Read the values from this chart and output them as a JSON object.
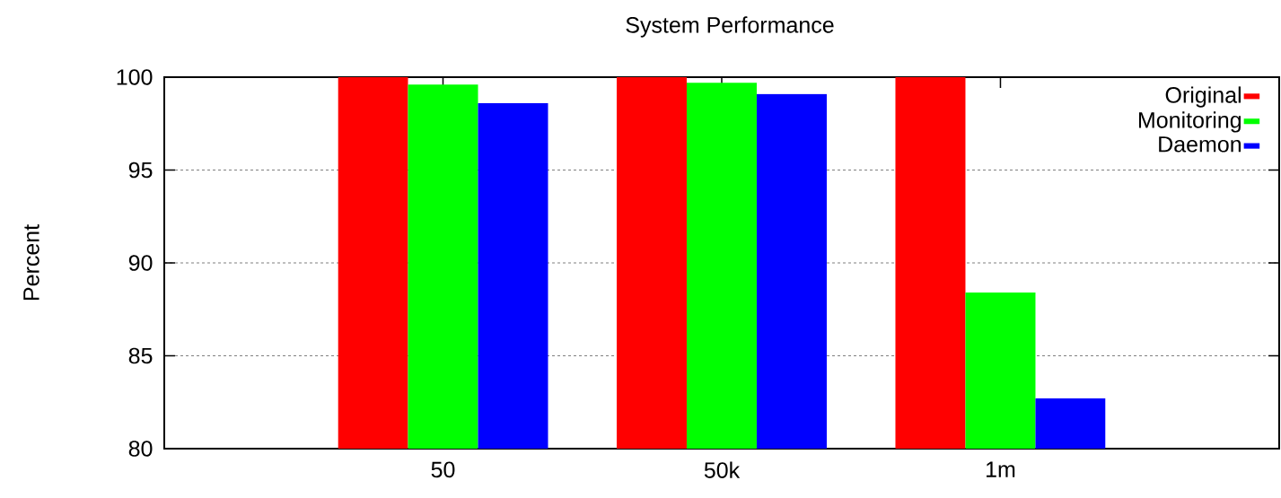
{
  "chart_data": {
    "type": "bar",
    "title": "System Performance",
    "ylabel": "Percent",
    "categories": [
      "50",
      "50k",
      "1m"
    ],
    "series": [
      {
        "name": "Original",
        "color": "#ff0000",
        "values": [
          100,
          100,
          100
        ]
      },
      {
        "name": "Monitoring",
        "color": "#00ff00",
        "values": [
          99.6,
          99.7,
          88.4
        ]
      },
      {
        "name": "Daemon",
        "color": "#0000ff",
        "values": [
          98.6,
          99.1,
          82.7
        ]
      }
    ],
    "ylim": [
      80,
      100
    ],
    "yticks": [
      80,
      85,
      90,
      95,
      100
    ],
    "grid": "y",
    "legend": "top right"
  }
}
